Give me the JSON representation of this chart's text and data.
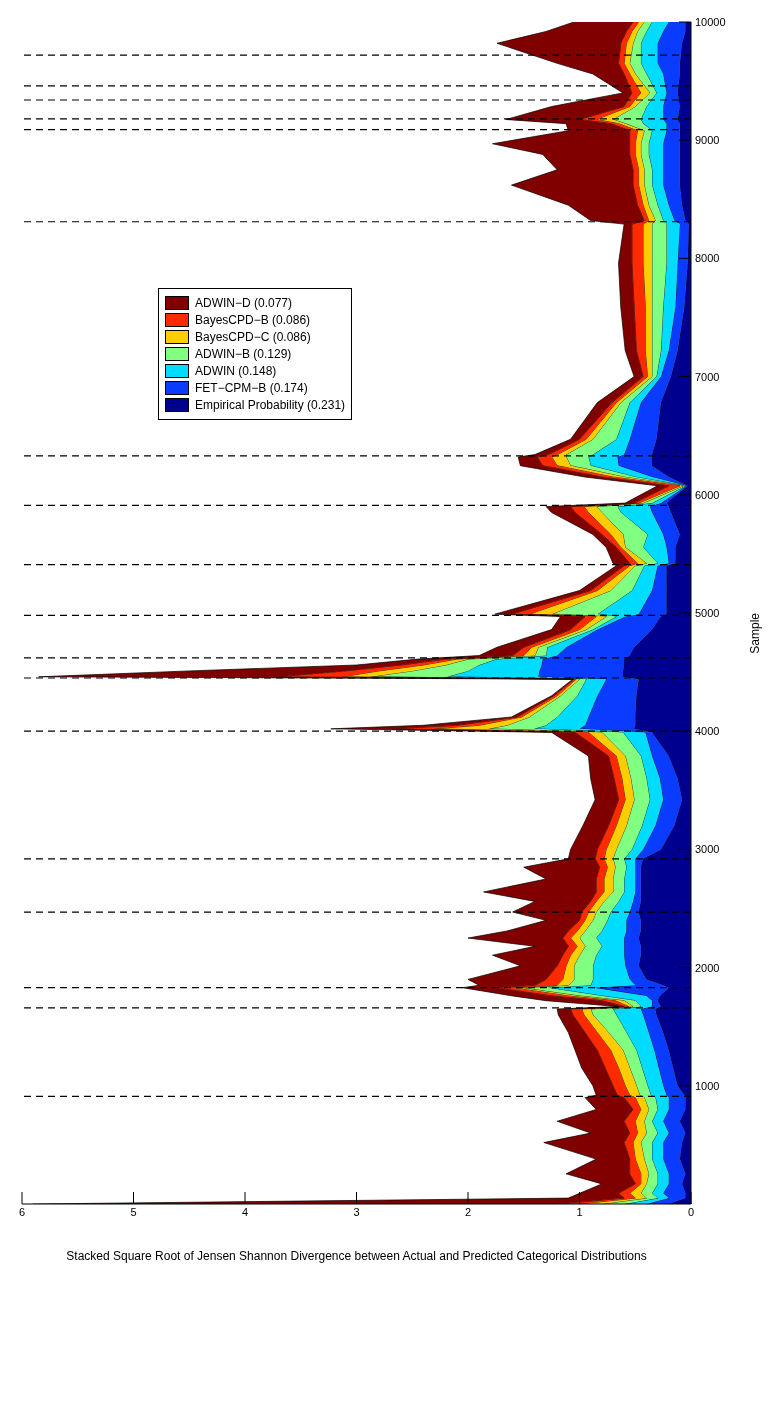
{
  "chart_data": {
    "type": "area",
    "stacked": true,
    "orientation": "horizontal",
    "xlabel": "Stacked Square Root of Jensen Shannon Divergence between Actual and Predicted Categorical Distributions",
    "ylabel": "Sample",
    "xlim": [
      6,
      0
    ],
    "xticks": [
      0,
      1,
      2,
      3,
      4,
      5,
      6
    ],
    "ylim": [
      0,
      10000
    ],
    "yticks": [
      1000,
      2000,
      3000,
      4000,
      5000,
      6000,
      7000,
      8000,
      9000,
      10000
    ],
    "legend": "top left",
    "x": [
      0,
      50,
      90,
      170,
      255,
      380,
      520,
      600,
      700,
      800,
      900,
      920,
      1000,
      1150,
      1300,
      1450,
      1600,
      1650,
      1670,
      1720,
      1760,
      1830,
      1850,
      1900,
      2015,
      2105,
      2180,
      2250,
      2310,
      2400,
      2470,
      2560,
      2640,
      2750,
      2850,
      2920,
      3000,
      3200,
      3420,
      3600,
      3790,
      3990,
      4020,
      4050,
      4120,
      4300,
      4440,
      4460,
      4510,
      4560,
      4610,
      4640,
      4710,
      4860,
      4970,
      4990,
      5190,
      5400,
      5420,
      5555,
      5665,
      5850,
      5900,
      5930,
      6076,
      6150,
      6246,
      6320,
      6340,
      6470,
      6780,
      7000,
      7220,
      7590,
      7960,
      8290,
      8320,
      8450,
      8620,
      8750,
      8880,
      8970,
      9080,
      9140,
      9175,
      9285,
      9400,
      9560,
      9650,
      9820,
      9920,
      10000
    ],
    "series": [
      {
        "name": "Empirical Probability (0.231)",
        "color": "#00008f",
        "values": [
          0.2,
          0.05,
          0.05,
          0.08,
          0.05,
          0.1,
          0.08,
          0.05,
          0.1,
          0.05,
          0.05,
          0.06,
          0.12,
          0.16,
          0.2,
          0.25,
          0.31,
          0.32,
          0.27,
          0.3,
          0.28,
          0.2,
          0.25,
          0.4,
          0.47,
          0.45,
          0.45,
          0.47,
          0.45,
          0.45,
          0.47,
          0.45,
          0.45,
          0.45,
          0.45,
          0.43,
          0.27,
          0.15,
          0.08,
          0.12,
          0.2,
          0.35,
          0.51,
          0.5,
          0.5,
          0.49,
          0.47,
          0.61,
          0.61,
          0.6,
          0.6,
          0.55,
          0.51,
          0.35,
          0.27,
          0.22,
          0.22,
          0.22,
          0.14,
          0.14,
          0.1,
          0.18,
          0.2,
          0.22,
          0.03,
          0.2,
          0.35,
          0.35,
          0.35,
          0.31,
          0.27,
          0.18,
          0.12,
          0.06,
          0.03,
          0.02,
          0.05,
          0.08,
          0.1,
          0.1,
          0.1,
          0.1,
          0.1,
          0.1,
          0.12,
          0.1,
          0.12,
          0.1,
          0.1,
          0.08,
          0.05,
          0.05
        ]
      },
      {
        "name": "FET−CPM−B (0.174)",
        "color": "#0a3cff",
        "values": [
          0.2,
          0.15,
          0.2,
          0.12,
          0.15,
          0.15,
          0.17,
          0.15,
          0.15,
          0.15,
          0.15,
          0.16,
          0.13,
          0.13,
          0.13,
          0.13,
          0.12,
          0.13,
          0.08,
          0.05,
          0.12,
          0.68,
          0.25,
          0.15,
          0.12,
          0.15,
          0.15,
          0.13,
          0.13,
          0.13,
          0.08,
          0.07,
          0.05,
          0.05,
          0.05,
          0.07,
          0.16,
          0.17,
          0.17,
          0.16,
          0.15,
          0.06,
          0.49,
          0.45,
          0.42,
          0.35,
          0.29,
          0.76,
          0.75,
          0.74,
          0.73,
          0.65,
          0.61,
          0.49,
          0.32,
          0.25,
          0.13,
          0.08,
          0.06,
          0.08,
          0.15,
          0.17,
          0.17,
          0.05,
          0.01,
          0.15,
          0.3,
          0.31,
          0.25,
          0.24,
          0.18,
          0.09,
          0.08,
          0.08,
          0.09,
          0.08,
          0.1,
          0.12,
          0.15,
          0.15,
          0.15,
          0.15,
          0.12,
          0.12,
          0.13,
          0.15,
          0.1,
          0.15,
          0.2,
          0.22,
          0.2,
          0.15
        ]
      },
      {
        "name": "ADWIN (0.148)",
        "color": "#00dcff",
        "values": [
          0.2,
          0.1,
          0.1,
          0.1,
          0.1,
          0.1,
          0.1,
          0.1,
          0.1,
          0.1,
          0.12,
          0.14,
          0.14,
          0.15,
          0.16,
          0.2,
          0.24,
          0.25,
          0.1,
          0.15,
          0.4,
          0.41,
          0.4,
          0.33,
          0.29,
          0.25,
          0.2,
          0.25,
          0.22,
          0.17,
          0.17,
          0.13,
          0.1,
          0.1,
          0.08,
          0.1,
          0.1,
          0.12,
          0.12,
          0.12,
          0.1,
          0.2,
          0.41,
          0.35,
          0.28,
          0.18,
          0.18,
          0.82,
          0.64,
          0.56,
          0.42,
          0.1,
          0.17,
          0.04,
          0.08,
          0.37,
          0.18,
          0.12,
          0.1,
          0.21,
          0.14,
          0.28,
          0.29,
          0.08,
          0.01,
          0.15,
          0.25,
          0.26,
          0.28,
          0.12,
          0.1,
          0.04,
          0.07,
          0.11,
          0.1,
          0.12,
          0.1,
          0.1,
          0.1,
          0.1,
          0.13,
          0.13,
          0.13,
          0.21,
          0.2,
          0.15,
          0.09,
          0.15,
          0.15,
          0.15,
          0.15,
          0.15
        ]
      },
      {
        "name": "ADWIN−B (0.129)",
        "color": "#80ff80",
        "values": [
          0.2,
          0.1,
          0.1,
          0.1,
          0.08,
          0.07,
          0.1,
          0.1,
          0.07,
          0.08,
          0.1,
          0.1,
          0.1,
          0.11,
          0.12,
          0.16,
          0.21,
          0.2,
          0.07,
          0.1,
          0.2,
          0.24,
          0.2,
          0.17,
          0.17,
          0.15,
          0.15,
          0.15,
          0.15,
          0.13,
          0.13,
          0.13,
          0.1,
          0.1,
          0.1,
          0.1,
          0.14,
          0.14,
          0.14,
          0.14,
          0.14,
          0.19,
          0.41,
          0.35,
          0.25,
          0.15,
          0.06,
          0.69,
          0.5,
          0.3,
          0.25,
          0.1,
          0.08,
          0.06,
          0.09,
          0.41,
          0.19,
          0.08,
          0.1,
          0.16,
          0.22,
          0.17,
          0.19,
          0.08,
          0.02,
          0.1,
          0.18,
          0.2,
          0.24,
          0.21,
          0.08,
          0.04,
          0.08,
          0.1,
          0.13,
          0.13,
          0.07,
          0.08,
          0.07,
          0.07,
          0.07,
          0.07,
          0.07,
          0.16,
          0.25,
          0.1,
          0.06,
          0.1,
          0.1,
          0.07,
          0.08,
          0.07
        ]
      },
      {
        "name": "BayesCPD−C (0.086)",
        "color": "#ffcc00",
        "values": [
          0.2,
          0.1,
          0.1,
          0.05,
          0.07,
          0.08,
          0.07,
          0.08,
          0.08,
          0.07,
          0.08,
          0.09,
          0.1,
          0.1,
          0.11,
          0.1,
          0.08,
          0.08,
          0.04,
          0.08,
          0.1,
          0.07,
          0.1,
          0.1,
          0.07,
          0.08,
          0.07,
          0.08,
          0.07,
          0.07,
          0.07,
          0.07,
          0.08,
          0.08,
          0.07,
          0.08,
          0.09,
          0.09,
          0.08,
          0.08,
          0.08,
          0.12,
          0.49,
          0.25,
          0.07,
          0.03,
          0.03,
          0.25,
          0.3,
          0.2,
          0.1,
          0.1,
          0.06,
          0.06,
          0.09,
          0.2,
          0.12,
          0.05,
          0.08,
          0.04,
          0.11,
          0.12,
          0.11,
          0.04,
          0.03,
          0.1,
          0.12,
          0.13,
          0.08,
          0.06,
          0.04,
          0.04,
          0.06,
          0.06,
          0.08,
          0.08,
          0.06,
          0.05,
          0.05,
          0.05,
          0.05,
          0.05,
          0.06,
          0.06,
          0.15,
          0.05,
          0.08,
          0.05,
          0.05,
          0.06,
          0.05,
          0.05
        ]
      },
      {
        "name": "BayesCPD−B (0.086)",
        "color": "#ff2a00",
        "values": [
          0.2,
          0.1,
          0.1,
          0.05,
          0.1,
          0.05,
          0.08,
          0.07,
          0.1,
          0.07,
          0.1,
          0.11,
          0.11,
          0.12,
          0.12,
          0.11,
          0.1,
          0.1,
          0.04,
          0.12,
          0.15,
          0.15,
          0.2,
          0.15,
          0.08,
          0.07,
          0.08,
          0.07,
          0.08,
          0.05,
          0.06,
          0.05,
          0.07,
          0.07,
          0.07,
          0.08,
          0.08,
          0.07,
          0.06,
          0.07,
          0.07,
          0.12,
          0.37,
          0.2,
          0.04,
          0.03,
          0.02,
          0.57,
          0.3,
          0.2,
          0.1,
          0.1,
          0.07,
          0.08,
          0.1,
          0.16,
          0.06,
          0.05,
          0.07,
          0.04,
          0.08,
          0.12,
          0.12,
          0.04,
          0.1,
          0.1,
          0.13,
          0.13,
          0.08,
          0.06,
          0.04,
          0.04,
          0.08,
          0.1,
          0.1,
          0.1,
          0.04,
          0.05,
          0.05,
          0.05,
          0.05,
          0.05,
          0.07,
          0.07,
          0.15,
          0.05,
          0.08,
          0.05,
          0.05,
          0.05,
          0.05,
          0.05
        ]
      },
      {
        "name": "ADWIN−D (0.077)",
        "color": "#800000",
        "values": [
          4.7,
          0.5,
          0.35,
          0.3,
          0.57,
          0.3,
          0.72,
          0.35,
          0.6,
          0.33,
          0.35,
          0.19,
          0.18,
          0.21,
          0.2,
          0.15,
          0.13,
          0.12,
          0.05,
          0.5,
          0.35,
          0.3,
          0.5,
          0.7,
          0.33,
          0.63,
          0.3,
          0.85,
          0.55,
          0.3,
          0.62,
          0.5,
          1.01,
          0.45,
          0.68,
          0.24,
          0.24,
          0.23,
          0.21,
          0.21,
          0.18,
          0.21,
          0.55,
          0.3,
          0.05,
          0.02,
          0.01,
          2.15,
          1.4,
          0.4,
          0.25,
          0.3,
          0.24,
          0.17,
          0.22,
          0.15,
          0.1,
          0.07,
          0.15,
          0.09,
          0.08,
          0.21,
          0.22,
          0.08,
          0.1,
          0.15,
          0.2,
          0.17,
          0.12,
          0.08,
          0.13,
          0.08,
          0.1,
          0.12,
          0.12,
          0.07,
          0.48,
          0.62,
          1.09,
          0.68,
          0.78,
          1.23,
          0.55,
          0.4,
          0.66,
          0.65,
          0.08,
          0.28,
          0.55,
          1.11,
          0.72,
          0.53
        ]
      }
    ],
    "ref_lines": [
      {
        "axis": "y",
        "value": 910,
        "line_style": "dashed"
      },
      {
        "axis": "y",
        "value": 1660,
        "line_style": "dashed"
      },
      {
        "axis": "y",
        "value": 1830,
        "line_style": "dashed"
      },
      {
        "axis": "y",
        "value": 2470,
        "line_style": "dashed"
      },
      {
        "axis": "y",
        "value": 2920,
        "line_style": "dashed"
      },
      {
        "axis": "y",
        "value": 4000,
        "line_style": "dashed"
      },
      {
        "axis": "y",
        "value": 4450,
        "line_style": "dashed"
      },
      {
        "axis": "y",
        "value": 4620,
        "line_style": "dashed"
      },
      {
        "axis": "y",
        "value": 4980,
        "line_style": "dashed"
      },
      {
        "axis": "y",
        "value": 5410,
        "line_style": "dashed"
      },
      {
        "axis": "y",
        "value": 5910,
        "line_style": "dashed"
      },
      {
        "axis": "y",
        "value": 6330,
        "line_style": "dashed"
      },
      {
        "axis": "y",
        "value": 8310,
        "line_style": "dashed"
      },
      {
        "axis": "y",
        "value": 9090,
        "line_style": "dashed"
      },
      {
        "axis": "y",
        "value": 9180,
        "line_style": "dashed"
      },
      {
        "axis": "y",
        "value": 9340,
        "line_style": "dashed"
      },
      {
        "axis": "y",
        "value": 9460,
        "line_style": "dashed"
      },
      {
        "axis": "y",
        "value": 9720,
        "line_style": "dashed"
      }
    ]
  }
}
